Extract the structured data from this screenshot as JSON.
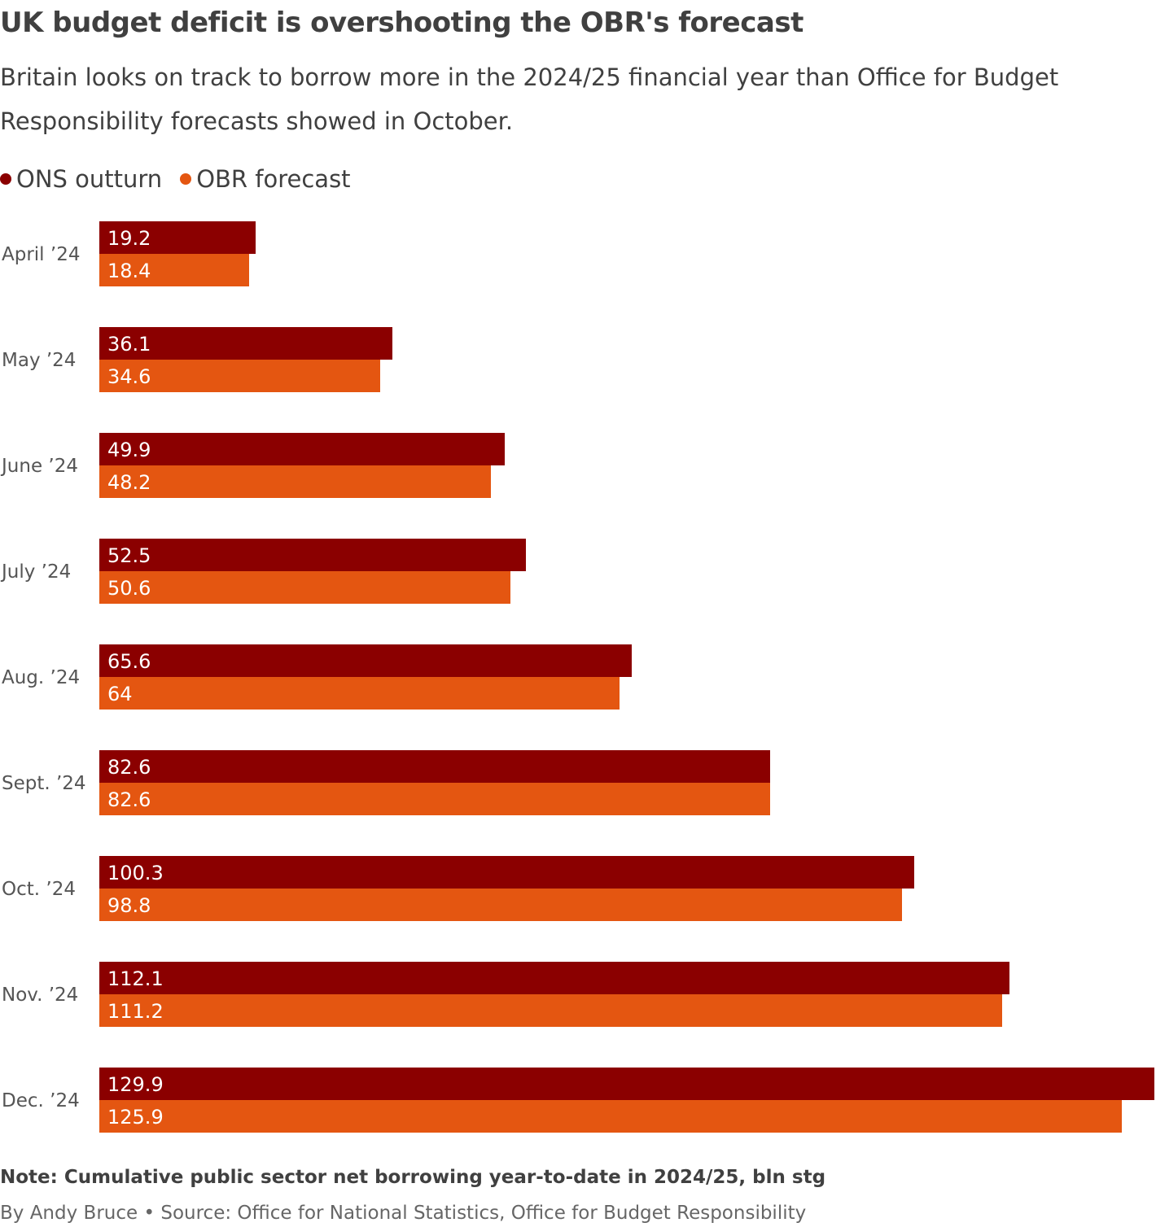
{
  "title": "UK budget deficit is overshooting the OBR's forecast",
  "subtitle": "Britain looks on track to borrow more in the 2024/25 financial year than Office for Budget Responsibility forecasts showed in October.",
  "note": "Note: Cumulative public sector net borrowing year-to-date in 2024/25, bln stg",
  "credit": {
    "byline": "By Andy Bruce",
    "separator": "•",
    "source": "Source: Office for National Statistics, Office for Budget Responsibility"
  },
  "colors": {
    "ons": "#8b0000",
    "obr": "#e45611",
    "text": "#404040"
  },
  "chart_data": {
    "type": "bar",
    "orientation": "horizontal",
    "title": "UK budget deficit is overshooting the OBR's forecast",
    "categories": [
      "April ’24",
      "May ’24",
      "June ’24",
      "July ’24",
      "Aug. ’24",
      "Sept. ’24",
      "Oct. ’24",
      "Nov. ’24",
      "Dec. ’24"
    ],
    "series": [
      {
        "name": "ONS outturn",
        "color": "#8b0000",
        "values": [
          19.2,
          36.1,
          49.9,
          52.5,
          65.6,
          82.6,
          100.3,
          112.1,
          129.9
        ]
      },
      {
        "name": "OBR forecast",
        "color": "#e45611",
        "values": [
          18.4,
          34.6,
          48.2,
          50.6,
          64,
          82.6,
          98.8,
          111.2,
          125.9
        ]
      }
    ],
    "xlim": [
      0,
      129.9
    ],
    "grid": false,
    "legend": "top-left",
    "data_labels": "inside-left"
  }
}
